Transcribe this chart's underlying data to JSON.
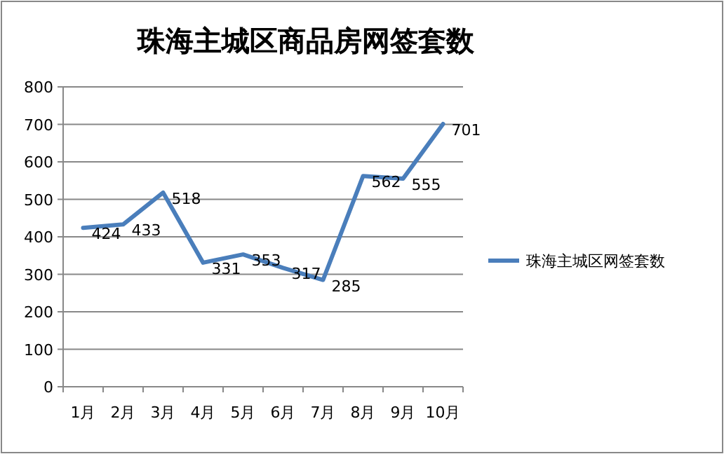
{
  "chart_data": {
    "type": "line",
    "title": "珠海主城区商品房网签套数",
    "categories": [
      "1月",
      "2月",
      "3月",
      "4月",
      "5月",
      "6月",
      "7月",
      "8月",
      "9月",
      "10月"
    ],
    "series": [
      {
        "name": "珠海主城区网签套数",
        "color": "#4a7ebb",
        "values": [
          424,
          433,
          518,
          331,
          353,
          317,
          285,
          562,
          555,
          701
        ]
      }
    ],
    "ylim": [
      0,
      800
    ],
    "yticks": [
      0,
      100,
      200,
      300,
      400,
      500,
      600,
      700,
      800
    ],
    "grid": "y",
    "legend": "right",
    "data_labels": true,
    "marker": "none",
    "line_style": "solid"
  }
}
